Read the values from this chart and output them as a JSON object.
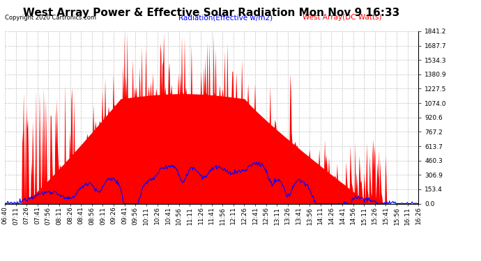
{
  "title": "West Array Power & Effective Solar Radiation Mon Nov 9 16:33",
  "copyright": "Copyright 2020 Cartronics.com",
  "legend_radiation": "Radiation(Effective w/m2)",
  "legend_west": "West Array(DC Watts)",
  "radiation_color": "blue",
  "west_color": "red",
  "yticks": [
    0.0,
    153.4,
    306.9,
    460.3,
    613.7,
    767.2,
    920.6,
    1074.0,
    1227.5,
    1380.9,
    1534.3,
    1687.7,
    1841.2
  ],
  "ymax": 1841.2,
  "ymin": 0.0,
  "background_color": "#ffffff",
  "grid_color": "#c0c0c0",
  "title_fontsize": 11,
  "tick_fontsize": 6.5,
  "x_labels": [
    "06:40",
    "07:11",
    "07:26",
    "07:41",
    "07:56",
    "08:11",
    "08:26",
    "08:41",
    "08:56",
    "09:11",
    "09:26",
    "09:41",
    "09:56",
    "10:11",
    "10:26",
    "10:41",
    "10:56",
    "11:11",
    "11:26",
    "11:41",
    "11:56",
    "12:11",
    "12:26",
    "12:41",
    "12:56",
    "13:11",
    "13:26",
    "13:41",
    "13:56",
    "14:11",
    "14:26",
    "14:41",
    "14:56",
    "15:11",
    "15:26",
    "15:41",
    "15:56",
    "16:11",
    "16:26"
  ],
  "n_points": 600
}
